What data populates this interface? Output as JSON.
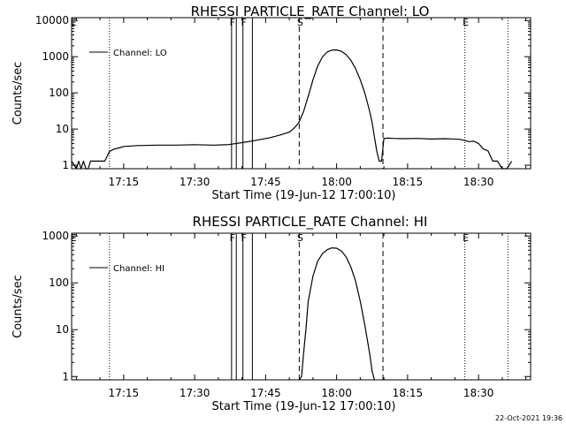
{
  "footer": {
    "timestamp": "22-Oct-2021 19:36"
  },
  "chart_data": [
    {
      "type": "line",
      "title": "RHESSI PARTICLE_RATE Channel: LO",
      "xlabel": "Start Time (19-Jun-12 17:00:10)",
      "ylabel": "Counts/sec",
      "yscale": "log",
      "xlim": [
        4,
        101
      ],
      "ylim": [
        0.8,
        12000
      ],
      "x_ticks": [
        15,
        30,
        45,
        60,
        75,
        90
      ],
      "x_tick_labels": [
        "17:15",
        "17:30",
        "17:45",
        "18:00",
        "18:15",
        "18:30"
      ],
      "y_ticks": [
        1,
        10,
        100,
        1000,
        10000
      ],
      "y_tick_labels": [
        "1",
        "10",
        "100",
        "1000",
        "10000"
      ],
      "legend": {
        "position": "top-left",
        "entries": [
          "Channel: LO"
        ]
      },
      "markers": [
        {
          "label": "E",
          "x": 4.2,
          "style": "dotted",
          "show_line": false
        },
        {
          "label": "",
          "x": 12,
          "style": "dotted",
          "show_line": true
        },
        {
          "label": "F",
          "x": 37.8,
          "style": "solid",
          "show_line": true
        },
        {
          "label": "F",
          "x": 40.2,
          "style": "solid",
          "show_line": true
        },
        {
          "label": "",
          "x": 38.8,
          "style": "solid",
          "show_line": true
        },
        {
          "label": "",
          "x": 42.2,
          "style": "solid",
          "show_line": true
        },
        {
          "label": "S",
          "x": 52.1,
          "style": "dashed",
          "show_line": true
        },
        {
          "label": "",
          "x": 69.8,
          "style": "dashed",
          "show_line": true
        },
        {
          "label": "E",
          "x": 87.1,
          "style": "dotted",
          "show_line": true
        },
        {
          "label": "",
          "x": 96.2,
          "style": "dotted",
          "show_line": true
        }
      ],
      "series": [
        {
          "name": "Channel: LO",
          "x": [
            4,
            5,
            5.5,
            6,
            6.5,
            7,
            7.5,
            8,
            9,
            10,
            11,
            12,
            13,
            14,
            15,
            18,
            22,
            26,
            30,
            34,
            37,
            40,
            43,
            46,
            48,
            50,
            51,
            52,
            53,
            54,
            55,
            56,
            57,
            58,
            59,
            60,
            61,
            62,
            63,
            64,
            65,
            66,
            67,
            67.5,
            68,
            68.5,
            69,
            69.5,
            70,
            71,
            72,
            74,
            77,
            80,
            83,
            86,
            88,
            89,
            90,
            91,
            92,
            93,
            94,
            95,
            96,
            97
          ],
          "y": [
            1.3,
            0.8,
            1.3,
            0.8,
            1.3,
            0.8,
            0.8,
            1.3,
            1.3,
            1.3,
            1.3,
            2.4,
            2.8,
            3.0,
            3.3,
            3.5,
            3.6,
            3.6,
            3.7,
            3.6,
            3.7,
            4.2,
            4.9,
            5.8,
            6.8,
            8.2,
            10.5,
            15,
            30,
            80,
            230,
            550,
            980,
            1350,
            1520,
            1540,
            1420,
            1150,
            800,
            470,
            230,
            95,
            30,
            15,
            6,
            2.4,
            1.3,
            1.3,
            5.5,
            5.6,
            5.5,
            5.4,
            5.5,
            5.3,
            5.4,
            5.2,
            4.5,
            4.6,
            4.0,
            2.8,
            2.5,
            1.3,
            1.3,
            0.8,
            0.8,
            1.3
          ]
        }
      ]
    },
    {
      "type": "line",
      "title": "RHESSI PARTICLE_RATE Channel: HI",
      "xlabel": "Start Time (19-Jun-12 17:00:10)",
      "ylabel": "Counts/sec",
      "yscale": "log",
      "xlim": [
        4,
        101
      ],
      "ylim": [
        0.85,
        1150
      ],
      "x_ticks": [
        15,
        30,
        45,
        60,
        75,
        90
      ],
      "x_tick_labels": [
        "17:15",
        "17:30",
        "17:45",
        "18:00",
        "18:15",
        "18:30"
      ],
      "y_ticks": [
        1,
        10,
        100,
        1000
      ],
      "y_tick_labels": [
        "1",
        "10",
        "100",
        "1000"
      ],
      "legend": {
        "position": "top-left",
        "entries": [
          "Channel: HI"
        ]
      },
      "markers": [
        {
          "label": "E",
          "x": 4.2,
          "style": "dotted",
          "show_line": false
        },
        {
          "label": "",
          "x": 12,
          "style": "dotted",
          "show_line": true
        },
        {
          "label": "F",
          "x": 37.8,
          "style": "solid",
          "show_line": true
        },
        {
          "label": "F",
          "x": 40.2,
          "style": "solid",
          "show_line": true
        },
        {
          "label": "",
          "x": 38.8,
          "style": "solid",
          "show_line": true
        },
        {
          "label": "",
          "x": 42.2,
          "style": "solid",
          "show_line": true
        },
        {
          "label": "S",
          "x": 52.1,
          "style": "dashed",
          "show_line": true
        },
        {
          "label": "",
          "x": 69.8,
          "style": "dashed",
          "show_line": true
        },
        {
          "label": "E",
          "x": 87.1,
          "style": "dotted",
          "show_line": true
        },
        {
          "label": "",
          "x": 96.2,
          "style": "dotted",
          "show_line": true
        }
      ],
      "series": [
        {
          "name": "Channel: HI",
          "x": [
            52.1,
            52.6,
            53,
            53.5,
            54,
            55,
            56,
            57,
            58,
            59,
            60,
            61,
            62,
            63,
            64,
            65,
            66,
            67,
            67.5,
            68
          ],
          "y": [
            0.85,
            1.0,
            3,
            10,
            40,
            140,
            290,
            420,
            510,
            560,
            550,
            480,
            360,
            220,
            110,
            40,
            12,
            3,
            1.3,
            0.85
          ]
        }
      ]
    }
  ]
}
